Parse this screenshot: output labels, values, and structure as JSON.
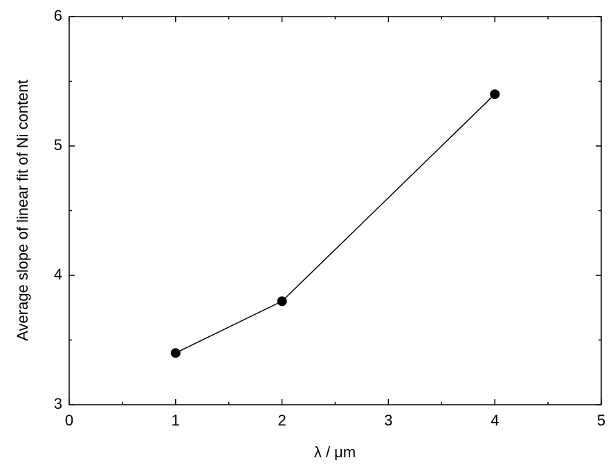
{
  "chart_data": {
    "type": "line",
    "x_label": "λ / μm",
    "y_label": "Average slope of linear fit of Ni content",
    "x": [
      1,
      2,
      4
    ],
    "series": [
      {
        "color": "#000000",
        "values": [
          3.4,
          3.8,
          5.4
        ]
      }
    ],
    "xlim": [
      0,
      5
    ],
    "ylim": [
      3,
      6
    ],
    "xticks": [
      0,
      1,
      2,
      3,
      4,
      5
    ],
    "yticks": [
      3,
      4,
      5,
      6
    ],
    "xminorticks": [
      0.5,
      1.5,
      2.5,
      3.5,
      4.5
    ],
    "yminorticks": [
      3.5,
      4.5,
      5.5
    ],
    "grid": false,
    "markers": true
  }
}
